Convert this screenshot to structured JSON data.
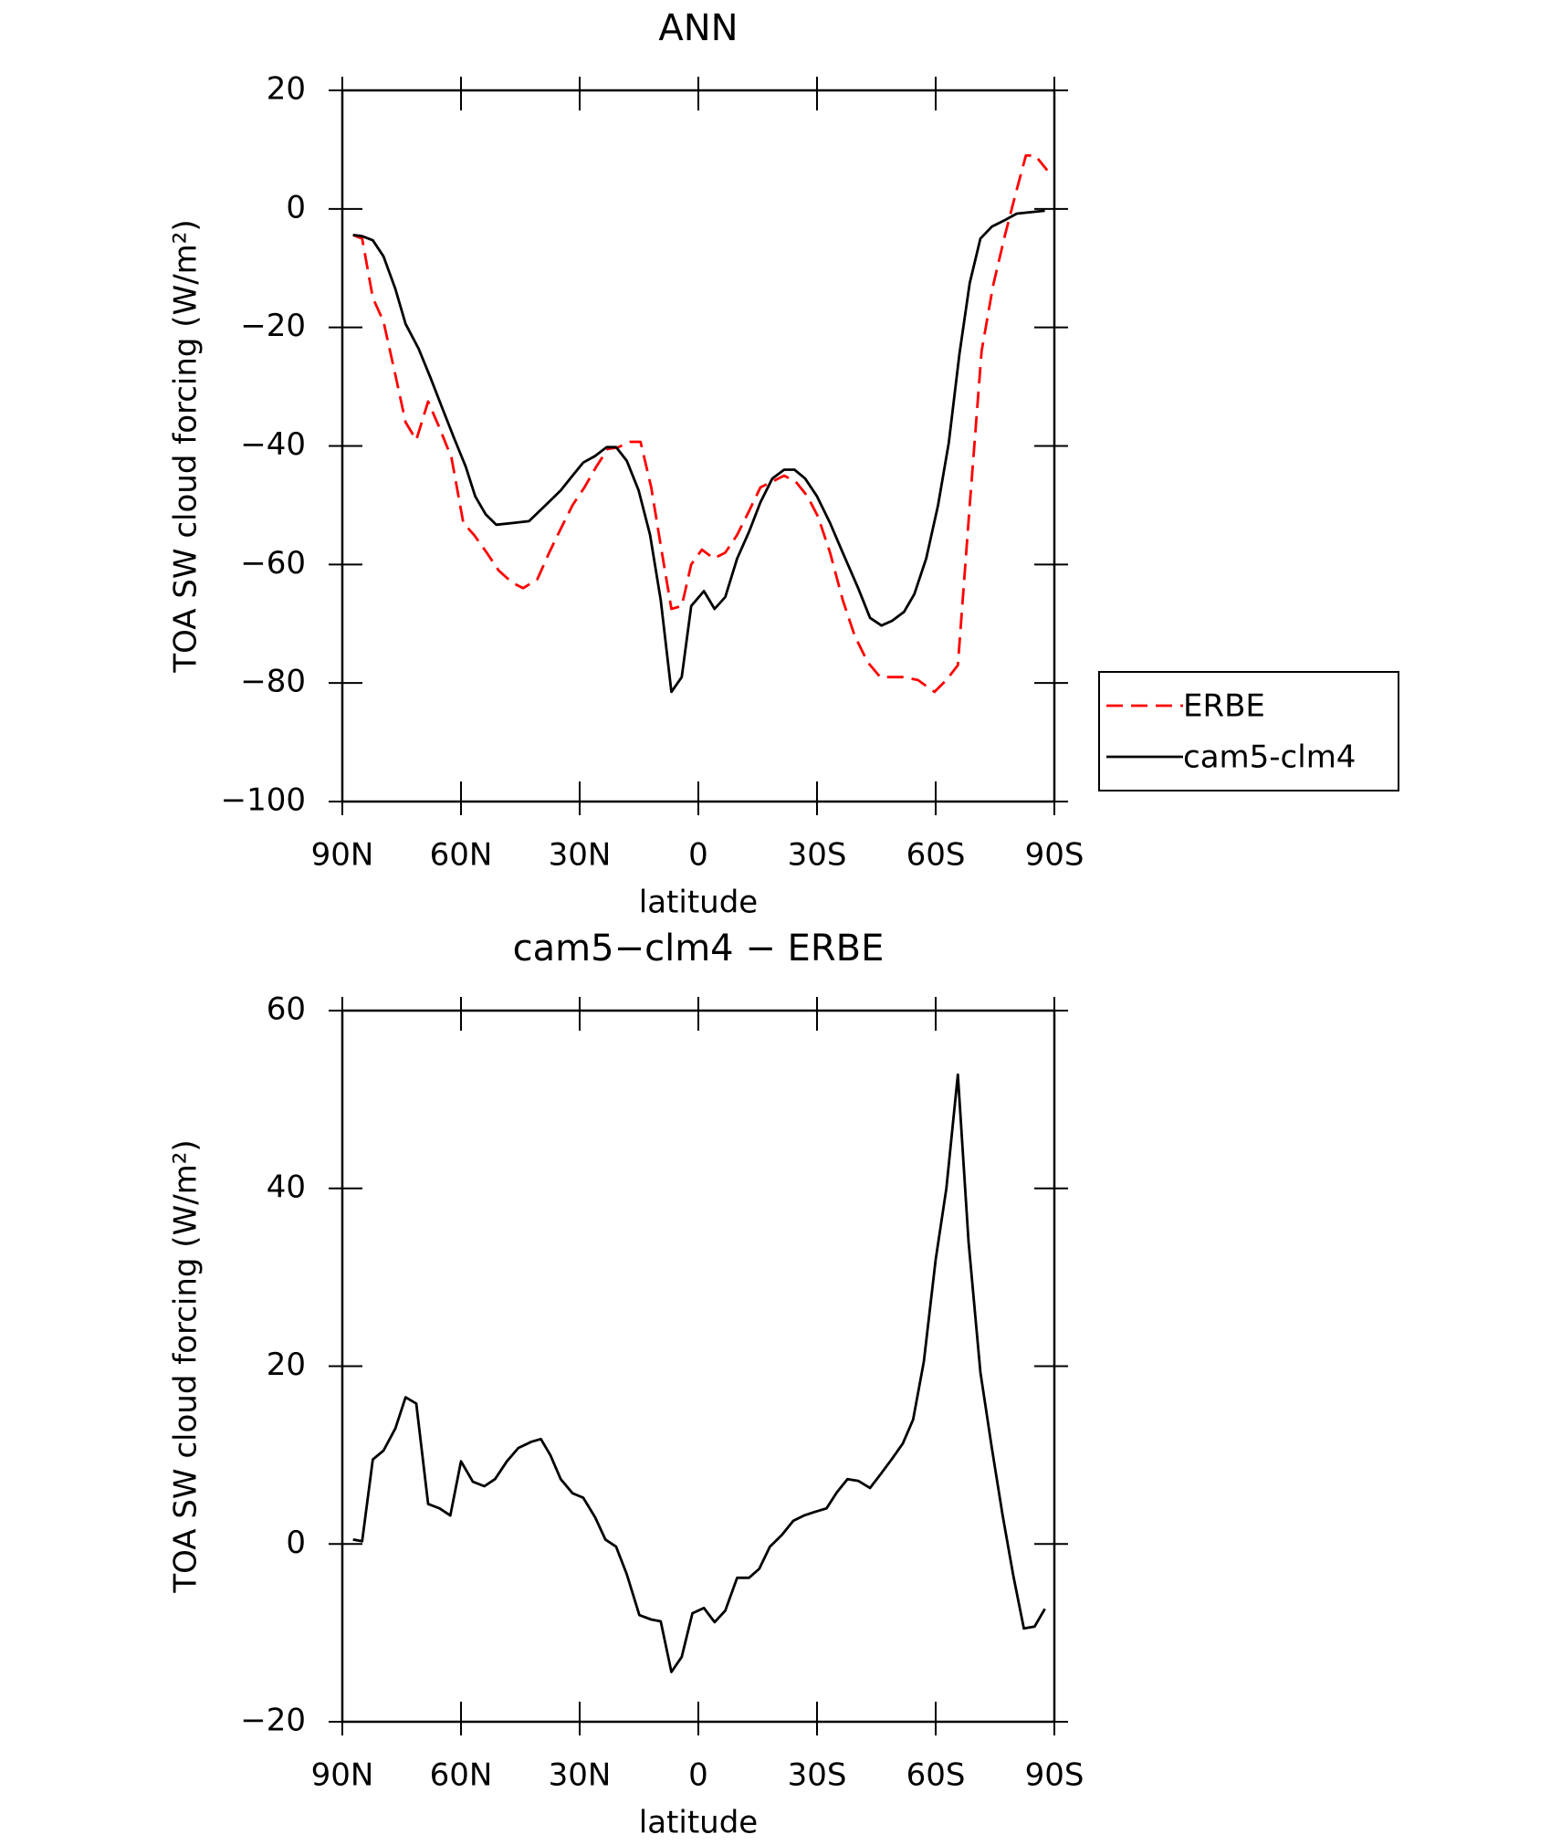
{
  "chart_data": [
    {
      "type": "line",
      "title": "ANN",
      "xlabel": "latitude",
      "ylabel": "TOA SW cloud forcing (W/m²)",
      "xlim": [
        90,
        -90
      ],
      "xticks": [
        {
          "value": 90,
          "label": "90N"
        },
        {
          "value": 60,
          "label": "60N"
        },
        {
          "value": 30,
          "label": "30N"
        },
        0,
        {
          "value": -30,
          "label": "30S"
        },
        {
          "value": -60,
          "label": "60S"
        },
        {
          "value": -90,
          "label": "90S"
        }
      ],
      "ylim": [
        -100,
        20
      ],
      "yticks": [
        {
          "value": -100,
          "label": "−100"
        },
        {
          "value": -80,
          "label": "−80"
        },
        {
          "value": -60,
          "label": "−60"
        },
        {
          "value": -40,
          "label": "−40"
        },
        {
          "value": -20,
          "label": "−20"
        },
        0,
        20
      ],
      "legend": "right",
      "series": [
        {
          "name": "ERBE",
          "color": "#ff0000",
          "dashed": true,
          "x": [
            87.3,
            85,
            82.3,
            79.6,
            76.6,
            74,
            71.3,
            68.3,
            65.4,
            62.4,
            59.4,
            56.7,
            53.5,
            50.5,
            47.2,
            44.3,
            40.7,
            37.7,
            34.8,
            31.8,
            28.8,
            25.8,
            22.9,
            20.5,
            17.2,
            14.6,
            11.9,
            9.2,
            6.8,
            4.2,
            1.8,
            -0.9,
            -3.9,
            -6.8,
            -9.8,
            -12.8,
            -15.7,
            -19.3,
            -21.7,
            -24.6,
            -27.6,
            -30.3,
            -33.3,
            -36.5,
            -39.5,
            -42.8,
            -46,
            -49,
            -51.7,
            -55.5,
            -59.7,
            -62.7,
            -65.6,
            -68.6,
            -71.6,
            -74.5,
            -77.5,
            -80.2,
            -82.8,
            -85.2,
            -88.2
          ],
          "values": [
            -4.4,
            -5,
            -15,
            -19,
            -28,
            -36,
            -39,
            -32.5,
            -37,
            -42,
            -53,
            -55,
            -58,
            -61,
            -63,
            -64,
            -62.5,
            -58,
            -54,
            -50,
            -47,
            -43.5,
            -40.5,
            -40.3,
            -39.3,
            -39.3,
            -47,
            -58,
            -67.5,
            -67,
            -60,
            -57.5,
            -59,
            -58,
            -55,
            -51,
            -47,
            -45.8,
            -45,
            -46,
            -48.5,
            -52,
            -58,
            -66,
            -72,
            -76.5,
            -79,
            -79,
            -79,
            -79.5,
            -81.5,
            -79.5,
            -77,
            -50,
            -24,
            -13,
            -4.5,
            2.5,
            9,
            9,
            6.5
          ]
        },
        {
          "name": "cam5-clm4",
          "color": "#000000",
          "dashed": false,
          "x": [
            87.3,
            85,
            82.3,
            79.6,
            76.6,
            74,
            70.7,
            67.7,
            64.8,
            61.8,
            58.8,
            56.4,
            53.8,
            51.1,
            46.9,
            42.8,
            38.6,
            34.8,
            31.8,
            29.1,
            26.1,
            23.2,
            20.8,
            18.1,
            15.1,
            12.2,
            9.5,
            6.8,
            4.2,
            1.8,
            -1.4,
            -4.1,
            -6.8,
            -9.8,
            -12.8,
            -15.7,
            -18.7,
            -21.7,
            -24.3,
            -27,
            -30,
            -33.3,
            -36.5,
            -40.4,
            -43.4,
            -46.3,
            -49,
            -52,
            -54.6,
            -57.6,
            -60.6,
            -63.3,
            -66,
            -68.6,
            -71.3,
            -74.2,
            -77.2,
            -80.5,
            -87.6
          ],
          "values": [
            -4.4,
            -4.6,
            -5.3,
            -8,
            -13.5,
            -19.4,
            -23.6,
            -28.5,
            -33.5,
            -38.6,
            -43.5,
            -48.5,
            -51.5,
            -53.3,
            -53,
            -52.7,
            -50,
            -47.5,
            -45,
            -42.8,
            -41.7,
            -40.2,
            -40.2,
            -42.5,
            -47.5,
            -55,
            -66,
            -81.5,
            -79,
            -67,
            -64.5,
            -67.5,
            -65.5,
            -59,
            -54.5,
            -49.5,
            -45.5,
            -44,
            -44,
            -45.5,
            -48.5,
            -53,
            -58,
            -64,
            -69,
            -70.3,
            -69.5,
            -68,
            -65,
            -59,
            -50,
            -39.5,
            -24.5,
            -12.5,
            -5,
            -3,
            -2,
            -0.8,
            -0.3
          ]
        }
      ]
    },
    {
      "type": "line",
      "title": "cam5−clm4 − ERBE",
      "xlabel": "latitude",
      "ylabel": "TOA SW cloud forcing (W/m²)",
      "xlim": [
        90,
        -90
      ],
      "xticks": [
        {
          "value": 90,
          "label": "90N"
        },
        {
          "value": 60,
          "label": "60N"
        },
        {
          "value": 30,
          "label": "30N"
        },
        0,
        {
          "value": -30,
          "label": "30S"
        },
        {
          "value": -60,
          "label": "60S"
        },
        {
          "value": -90,
          "label": "90S"
        }
      ],
      "ylim": [
        -20,
        60
      ],
      "yticks": [
        {
          "value": -20,
          "label": "−20"
        },
        0,
        20,
        40,
        60
      ],
      "series": [
        {
          "color": "#000000",
          "dashed": false,
          "x": [
            87.3,
            85,
            82.3,
            79.6,
            76.6,
            74,
            71.3,
            68.3,
            65.4,
            62.7,
            60,
            57,
            54.1,
            51.4,
            48.4,
            45.5,
            42.2,
            39.8,
            37.4,
            34.8,
            31.8,
            29.1,
            26.1,
            23.5,
            20.8,
            18.1,
            14.9,
            11.9,
            9.5,
            6.8,
            4.2,
            1.5,
            -1.4,
            -4.1,
            -6.8,
            -9.8,
            -12.8,
            -15.4,
            -18.1,
            -21.1,
            -24,
            -26.7,
            -29.4,
            -32.4,
            -35,
            -37.7,
            -40.4,
            -43.4,
            -46,
            -49,
            -51.7,
            -54.3,
            -57,
            -60,
            -62.7,
            -65.6,
            -68.3,
            -71.3,
            -74.2,
            -76.9,
            -79.6,
            -82.3,
            -85,
            -87.6
          ],
          "values": [
            0.5,
            0.3,
            9.5,
            10.5,
            13,
            16.5,
            15.8,
            4.5,
            4,
            3.2,
            9.3,
            7,
            6.5,
            7.3,
            9.3,
            10.8,
            11.5,
            11.8,
            10,
            7.3,
            5.7,
            5.2,
            3,
            0.5,
            -0.3,
            -3.4,
            -8,
            -8.5,
            -8.7,
            -14.4,
            -12.7,
            -7.8,
            -7.2,
            -8.8,
            -7.5,
            -3.8,
            -3.8,
            -2.8,
            -0.3,
            1,
            2.6,
            3.2,
            3.6,
            4,
            5.8,
            7.3,
            7.1,
            6.3,
            7.8,
            9.6,
            11.3,
            14,
            20.5,
            32,
            40,
            52.8,
            34,
            19.3,
            10.8,
            3.3,
            -3.5,
            -9.5,
            -9.3,
            -7.3
          ]
        }
      ]
    }
  ]
}
